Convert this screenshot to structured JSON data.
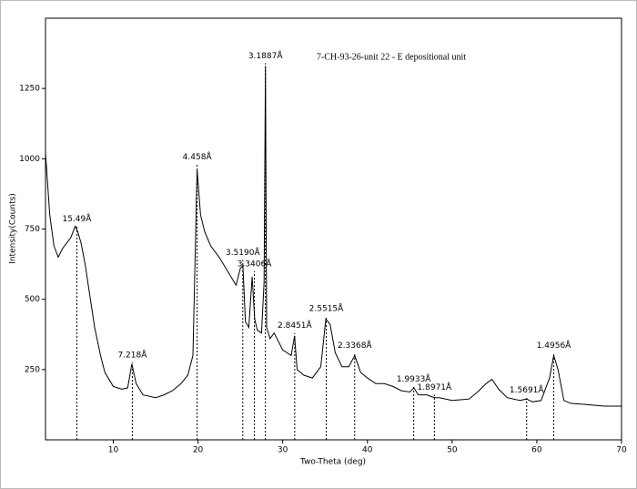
{
  "chart_data": {
    "type": "line",
    "title": "7-CH-93-26-unit 22 - E depositional unit",
    "x_label": "Two-Theta (deg)",
    "y_label": "Intensity(Counts)",
    "xlim": [
      2,
      70
    ],
    "ylim": [
      0,
      1500
    ],
    "xticks": [
      10,
      20,
      30,
      40,
      50,
      60,
      70
    ],
    "yticks": [
      250,
      500,
      750,
      1000,
      1250
    ],
    "series": [
      {
        "color": "#000000",
        "x": [
          2,
          2.5,
          3,
          3.5,
          4,
          4.5,
          5,
          5.5,
          5.8,
          6.2,
          6.7,
          7.2,
          7.8,
          8.5,
          9,
          10,
          11,
          11.7,
          12.2,
          12.7,
          13.5,
          15,
          16,
          17,
          18,
          18.8,
          19.4,
          19.9,
          20.3,
          20.8,
          21.5,
          22.5,
          23.5,
          24.5,
          25,
          25.3,
          25.6,
          26,
          26.4,
          26.7,
          27,
          27.5,
          27.8,
          27.96,
          28.1,
          28.5,
          29,
          30,
          31,
          31.4,
          31.7,
          32.5,
          33.5,
          34.5,
          35.1,
          35.6,
          36.2,
          37,
          37.8,
          38.5,
          39.2,
          40,
          41,
          42,
          43,
          44,
          45,
          45.5,
          46,
          47,
          47.9,
          48.5,
          50,
          52,
          53,
          54,
          54.7,
          55.5,
          56.5,
          58,
          58.8,
          59.5,
          60.5,
          61.5,
          62,
          62.5,
          63.2,
          64,
          66,
          68,
          70
        ],
        "values": [
          1020,
          800,
          690,
          650,
          680,
          700,
          720,
          760,
          740,
          700,
          620,
          520,
          400,
          300,
          240,
          190,
          180,
          185,
          270,
          200,
          160,
          150,
          160,
          175,
          200,
          230,
          300,
          960,
          800,
          740,
          690,
          650,
          600,
          550,
          610,
          620,
          420,
          400,
          580,
          430,
          390,
          380,
          560,
          1330,
          400,
          360,
          380,
          320,
          300,
          370,
          250,
          230,
          220,
          260,
          430,
          410,
          310,
          260,
          260,
          300,
          240,
          220,
          200,
          200,
          190,
          175,
          170,
          185,
          160,
          160,
          150,
          150,
          140,
          145,
          170,
          200,
          215,
          180,
          150,
          140,
          145,
          135,
          140,
          220,
          300,
          250,
          140,
          130,
          125,
          120,
          120
        ]
      }
    ],
    "peaks": [
      {
        "label": "15.49Å",
        "x": 5.7,
        "y": 760
      },
      {
        "label": "7.218Å",
        "x": 12.25,
        "y": 275
      },
      {
        "label": "4.458Å",
        "x": 19.9,
        "y": 980
      },
      {
        "label": "3.5190Å",
        "x": 25.29,
        "y": 640
      },
      {
        "label": "3.3406Å",
        "x": 26.66,
        "y": 600
      },
      {
        "label": "3.1887Å",
        "x": 27.96,
        "y": 1340
      },
      {
        "label": "2.8451Å",
        "x": 31.42,
        "y": 380
      },
      {
        "label": "2.5515Å",
        "x": 35.14,
        "y": 440
      },
      {
        "label": "2.3368Å",
        "x": 38.5,
        "y": 310
      },
      {
        "label": "1.9933Å",
        "x": 45.47,
        "y": 190
      },
      {
        "label": "1.8971Å",
        "x": 47.91,
        "y": 160
      },
      {
        "label": "1.5691Å",
        "x": 58.8,
        "y": 150
      },
      {
        "label": "1.4956Å",
        "x": 62.0,
        "y": 310
      }
    ]
  }
}
